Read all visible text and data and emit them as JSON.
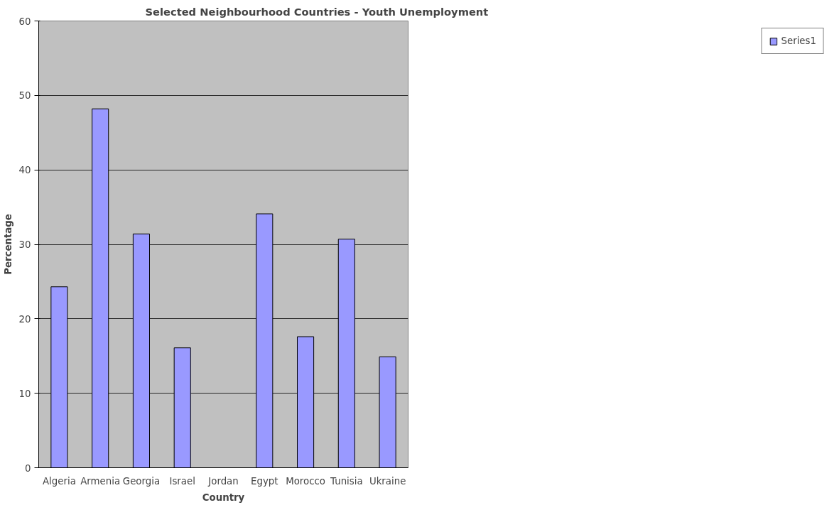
{
  "chart_data": {
    "type": "bar",
    "title": "Selected Neighbourhood Countries - Youth Unemployment",
    "xlabel": "Country",
    "ylabel": "Percentage",
    "categories": [
      "Algeria",
      "Armenia",
      "Georgia",
      "Israel",
      "Jordan",
      "Egypt",
      "Morocco",
      "Tunisia",
      "Ukraine"
    ],
    "series": [
      {
        "name": "Series1",
        "color": "#9999ff",
        "values": [
          24.3,
          48.2,
          31.4,
          16.1,
          null,
          34.1,
          17.6,
          30.7,
          14.9
        ]
      }
    ],
    "ylim": [
      0,
      60
    ],
    "yticks": [
      0,
      10,
      20,
      30,
      40,
      50,
      60
    ],
    "grid": "y",
    "legend": "right"
  }
}
